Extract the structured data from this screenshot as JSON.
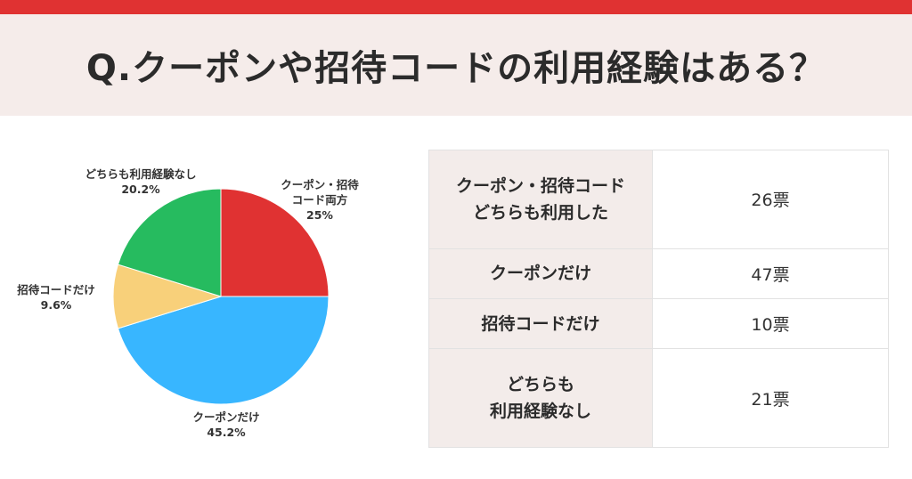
{
  "title": "Q.クーポンや招待コードの利用経験はある？",
  "colors": {
    "topbar": "#e03232",
    "title_band": "#f5ecea",
    "table_header_bg": "#f3ecea"
  },
  "chart_data": {
    "type": "pie",
    "slices": [
      {
        "label_lines": [
          "クーポン・招待",
          "コード両方"
        ],
        "percent_label": "25%",
        "value": 25.0,
        "color": "#e03232"
      },
      {
        "label_lines": [
          "クーポンだけ"
        ],
        "percent_label": "45.2%",
        "value": 45.2,
        "color": "#38b6ff"
      },
      {
        "label_lines": [
          "招待コードだけ"
        ],
        "percent_label": "9.6%",
        "value": 9.6,
        "color": "#f8d07a"
      },
      {
        "label_lines": [
          "どちらも利用経験なし"
        ],
        "percent_label": "20.2%",
        "value": 20.2,
        "color": "#26bb5f"
      }
    ]
  },
  "table": {
    "rows": [
      {
        "label_lines": [
          "クーポン・招待コード",
          "どちらも利用した"
        ],
        "votes": "26票"
      },
      {
        "label_lines": [
          "クーポンだけ"
        ],
        "votes": "47票"
      },
      {
        "label_lines": [
          "招待コードだけ"
        ],
        "votes": "10票"
      },
      {
        "label_lines": [
          "どちらも",
          "利用経験なし"
        ],
        "votes": "21票"
      }
    ]
  }
}
